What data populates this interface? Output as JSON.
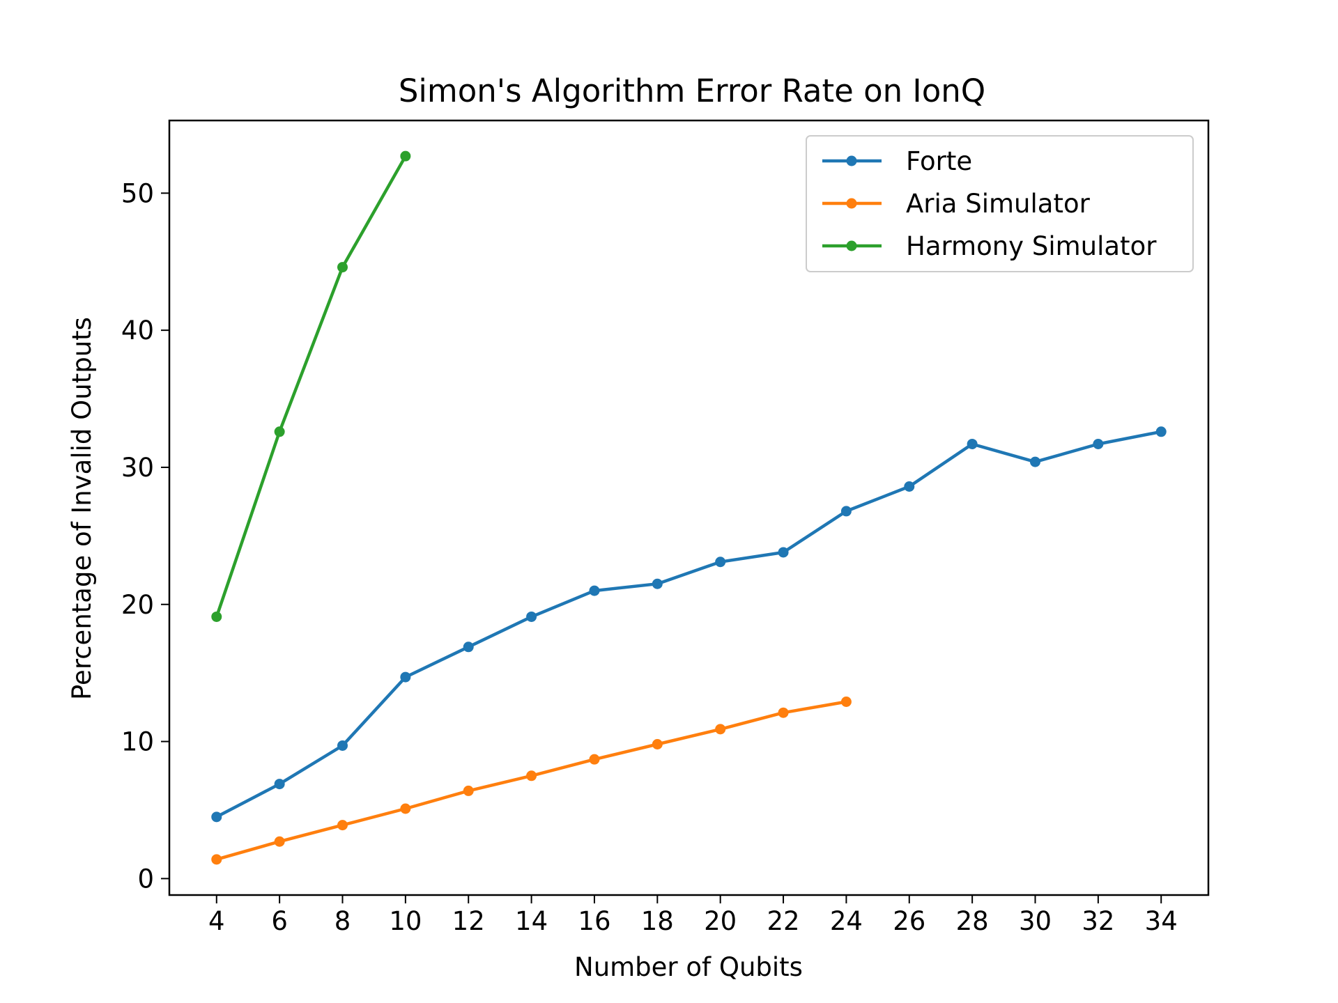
{
  "chart_data": {
    "type": "line",
    "title": "Simon's Algorithm Error Rate on IonQ",
    "xlabel": "Number of Qubits",
    "ylabel": "Percentage of Invalid Outputs",
    "xlim": [
      2.5,
      35.5
    ],
    "ylim": [
      -1.2,
      55.3
    ],
    "xticks": [
      4,
      6,
      8,
      10,
      12,
      14,
      16,
      18,
      20,
      22,
      24,
      26,
      28,
      30,
      32,
      34
    ],
    "yticks": [
      0,
      10,
      20,
      30,
      40,
      50
    ],
    "grid": false,
    "legend_position": "top-right",
    "series": [
      {
        "name": "Forte",
        "color": "#1f77b4",
        "marker": "circle",
        "x": [
          4,
          6,
          8,
          10,
          12,
          14,
          16,
          18,
          20,
          22,
          24,
          26,
          28,
          30,
          32,
          34
        ],
        "y": [
          4.5,
          6.9,
          9.7,
          14.7,
          16.9,
          19.1,
          21.0,
          21.5,
          23.1,
          23.8,
          26.8,
          28.6,
          31.7,
          30.4,
          31.7,
          32.6
        ]
      },
      {
        "name": "Aria Simulator",
        "color": "#ff7f0e",
        "marker": "circle",
        "x": [
          4,
          6,
          8,
          10,
          12,
          14,
          16,
          18,
          20,
          22,
          24
        ],
        "y": [
          1.4,
          2.7,
          3.9,
          5.1,
          6.4,
          7.5,
          8.7,
          9.8,
          10.9,
          12.1,
          12.9
        ]
      },
      {
        "name": "Harmony Simulator",
        "color": "#2ca02c",
        "marker": "circle",
        "x": [
          4,
          6,
          8,
          10
        ],
        "y": [
          19.1,
          32.6,
          44.6,
          52.7
        ]
      }
    ]
  }
}
